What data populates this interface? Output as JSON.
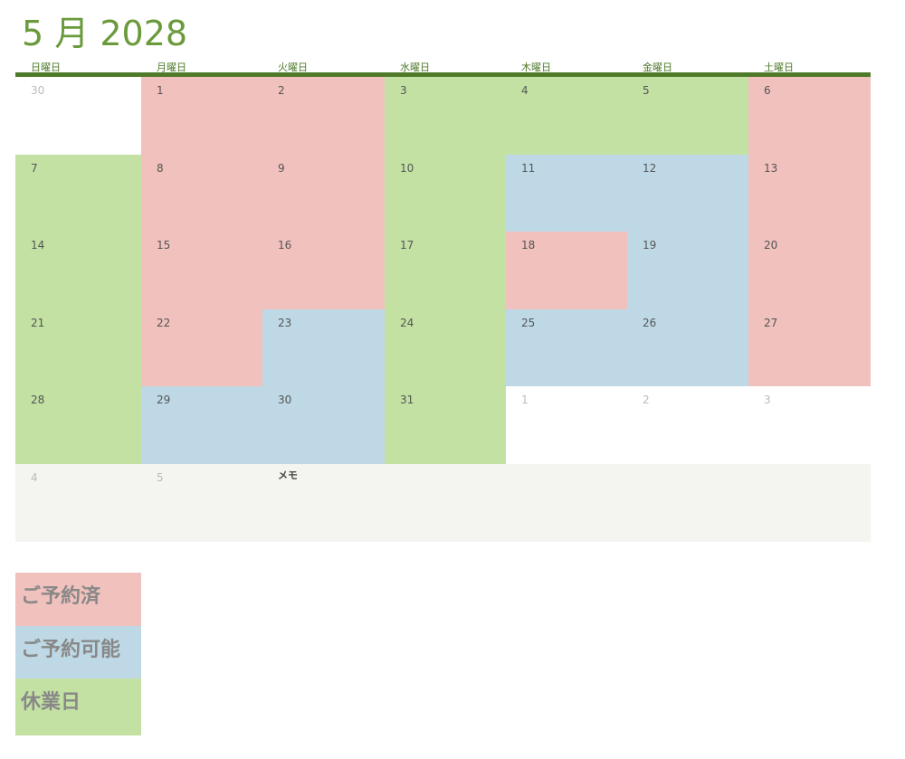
{
  "title": "5 月 2028",
  "weekdays": [
    "日曜日",
    "月曜日",
    "火曜日",
    "水曜日",
    "木曜日",
    "金曜日",
    "土曜日"
  ],
  "weeks": [
    [
      {
        "day": "30",
        "color": "#ffffff",
        "other_month": true
      },
      {
        "day": "1",
        "color": "#f0c1bd"
      },
      {
        "day": "2",
        "color": "#f0c1bd"
      },
      {
        "day": "3",
        "color": "#c3e1a3"
      },
      {
        "day": "4",
        "color": "#c3e1a3"
      },
      {
        "day": "5",
        "color": "#c3e1a3"
      },
      {
        "day": "6",
        "color": "#f0c1bd"
      }
    ],
    [
      {
        "day": "7",
        "color": "#c3e1a3"
      },
      {
        "day": "8",
        "color": "#f0c1bd"
      },
      {
        "day": "9",
        "color": "#f0c1bd"
      },
      {
        "day": "10",
        "color": "#c3e1a3"
      },
      {
        "day": "11",
        "color": "#bed9e5"
      },
      {
        "day": "12",
        "color": "#bed9e5"
      },
      {
        "day": "13",
        "color": "#f0c1bd"
      }
    ],
    [
      {
        "day": "14",
        "color": "#c3e1a3"
      },
      {
        "day": "15",
        "color": "#f0c1bd"
      },
      {
        "day": "16",
        "color": "#f0c1bd"
      },
      {
        "day": "17",
        "color": "#c3e1a3"
      },
      {
        "day": "18",
        "color": "#f0c1bd"
      },
      {
        "day": "19",
        "color": "#bed9e5"
      },
      {
        "day": "20",
        "color": "#f0c1bd"
      }
    ],
    [
      {
        "day": "21",
        "color": "#c3e1a3"
      },
      {
        "day": "22",
        "color": "#f0c1bd"
      },
      {
        "day": "23",
        "color": "#bed9e5"
      },
      {
        "day": "24",
        "color": "#c3e1a3"
      },
      {
        "day": "25",
        "color": "#bed9e5"
      },
      {
        "day": "26",
        "color": "#bed9e5"
      },
      {
        "day": "27",
        "color": "#f0c1bd"
      }
    ],
    [
      {
        "day": "28",
        "color": "#c3e1a3"
      },
      {
        "day": "29",
        "color": "#bed9e5"
      },
      {
        "day": "30",
        "color": "#bed9e5"
      },
      {
        "day": "31",
        "color": "#c3e1a3"
      },
      {
        "day": "1",
        "color": "#ffffff",
        "other_month": true
      },
      {
        "day": "2",
        "color": "#ffffff",
        "other_month": true
      },
      {
        "day": "3",
        "color": "#ffffff",
        "other_month": true
      }
    ],
    [
      {
        "day": "4",
        "color": "#f4f4f0",
        "other_month": true
      },
      {
        "day": "5",
        "color": "#f4f4f0",
        "other_month": true
      }
    ]
  ],
  "memo": "メモ",
  "legend": [
    {
      "label": "ご予約済",
      "color": "#f0c1bd"
    },
    {
      "label": "ご予約可能",
      "color": "#bed9e5"
    },
    {
      "label": "休業日",
      "color": "#c3e1a3"
    }
  ]
}
